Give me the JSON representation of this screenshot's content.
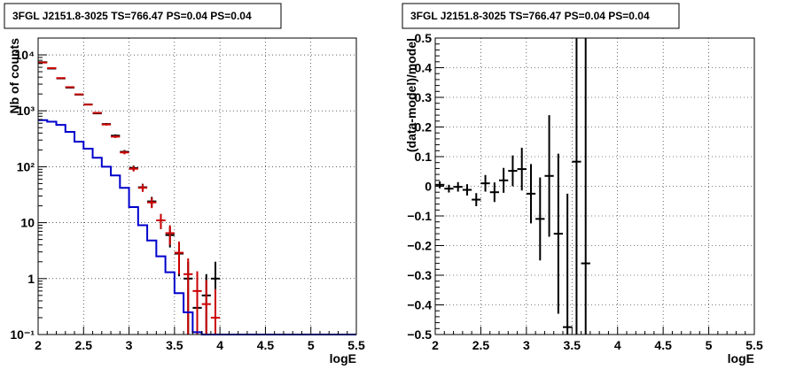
{
  "chart_data": [
    {
      "type": "scatter",
      "title": "3FGL J2151.8-3025 TS=766.47 PS=0.04 PS=0.04",
      "xlabel": "logE",
      "ylabel": "Nb of counts",
      "xlim": [
        2,
        5.5
      ],
      "ylim": [
        0.1,
        20000
      ],
      "yscale": "log",
      "grid": true,
      "x_ticks": [
        "2",
        "2.5",
        "3",
        "3.5",
        "4",
        "4.5",
        "5",
        "5.5"
      ],
      "y_ticks": [
        "10⁻¹",
        "1",
        "10",
        "10²",
        "10³",
        "10⁴"
      ],
      "colors": {
        "data": "#000000",
        "model": "#cc0000",
        "background": "#0000cc"
      },
      "series": [
        {
          "kind": "points",
          "color": "#000000",
          "x": [
            2.05,
            2.15,
            2.25,
            2.35,
            2.45,
            2.55,
            2.65,
            2.75,
            2.85,
            2.95,
            3.05,
            3.15,
            3.25,
            3.35,
            3.45,
            3.55,
            3.65,
            3.75,
            3.85,
            3.95
          ],
          "y": [
            7400,
            5700,
            3800,
            2600,
            1950,
            1300,
            900,
            580,
            360,
            185,
            95,
            43,
            24,
            11,
            6,
            2.8,
            1,
            0.3,
            0.5,
            1
          ],
          "yerr": [
            86,
            75,
            62,
            51,
            44,
            36,
            30,
            24,
            19,
            14,
            9.7,
            6.6,
            4.9,
            3.3,
            2.4,
            1.7,
            1,
            0.55,
            0.7,
            1
          ]
        },
        {
          "kind": "steps",
          "color": "#cc0000",
          "x": [
            2.05,
            2.15,
            2.25,
            2.35,
            2.45,
            2.55,
            2.65,
            2.75,
            2.85,
            2.95,
            3.05,
            3.15,
            3.25,
            3.35,
            3.45,
            3.55,
            3.65,
            3.75,
            3.85,
            3.95
          ],
          "y": [
            7300,
            5800,
            3850,
            2650,
            1970,
            1290,
            920,
            570,
            345,
            180,
            92,
            42,
            23,
            11,
            6.5,
            2.9,
            1.2,
            0.6,
            0.35,
            0.2
          ],
          "yerr": [
            85,
            76,
            62,
            51,
            44,
            36,
            30,
            24,
            19,
            13,
            9.6,
            6.5,
            4.8,
            3.3,
            2.5,
            1.7,
            1.1,
            0.75,
            0.59,
            0.45
          ]
        },
        {
          "kind": "histogram",
          "color": "#0000cc",
          "edges": [
            2.0,
            2.1,
            2.2,
            2.3,
            2.4,
            2.5,
            2.6,
            2.7,
            2.8,
            2.9,
            3.0,
            3.1,
            3.2,
            3.3,
            3.4,
            3.5,
            3.6,
            3.7,
            3.8,
            3.9,
            4.0,
            5.5
          ],
          "y": [
            680,
            640,
            560,
            420,
            280,
            210,
            145,
            100,
            70,
            42,
            19,
            9,
            4.8,
            2.5,
            1.3,
            0.55,
            0.25,
            0.11,
            0.1,
            0.1,
            0.1
          ]
        }
      ]
    },
    {
      "type": "scatter",
      "title": "3FGL J2151.8-3025 TS=766.47 PS=0.04 PS=0.04",
      "xlabel": "logE",
      "ylabel": "(data-model)/model",
      "xlim": [
        2,
        5.5
      ],
      "ylim": [
        -0.5,
        0.5
      ],
      "grid": true,
      "x_ticks": [
        "2",
        "2.5",
        "3",
        "3.5",
        "4",
        "4.5",
        "5",
        "5.5"
      ],
      "y_ticks": [
        "−0.5",
        "−0.4",
        "−0.3",
        "−0.2",
        "−0.1",
        "0",
        "0.1",
        "0.2",
        "0.3",
        "0.4",
        "0.5"
      ],
      "colors": {
        "points": "#000000"
      },
      "series": [
        {
          "kind": "points",
          "color": "#000000",
          "x": [
            2.05,
            2.15,
            2.25,
            2.35,
            2.45,
            2.55,
            2.65,
            2.75,
            2.85,
            2.95,
            3.05,
            3.15,
            3.25,
            3.35,
            3.45,
            3.55,
            3.65
          ],
          "y": [
            0.005,
            -0.008,
            -0.002,
            -0.012,
            -0.045,
            0.01,
            -0.02,
            0.02,
            0.052,
            0.058,
            -0.025,
            -0.11,
            0.035,
            -0.16,
            -0.475,
            0.083,
            -0.26
          ],
          "yerr": [
            0.012,
            0.013,
            0.016,
            0.019,
            0.022,
            0.028,
            0.033,
            0.042,
            0.052,
            0.072,
            0.1,
            0.14,
            0.205,
            0.27,
            0.45,
            0.6,
            0.8
          ]
        }
      ]
    }
  ]
}
